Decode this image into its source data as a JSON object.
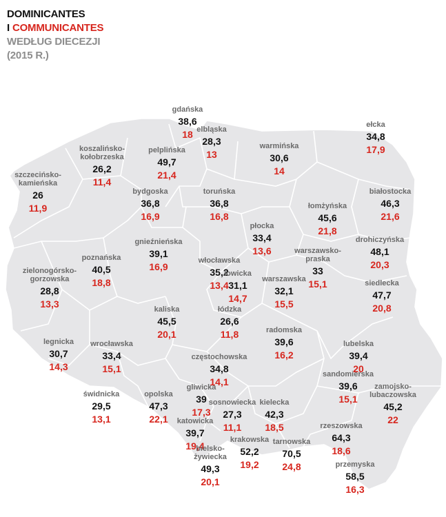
{
  "title": {
    "line1": "DOMINICANTES",
    "line2_prefix": "I ",
    "line2_red": "COMMUNICANTES",
    "line3": "WEDŁUG DIECEZJI",
    "line4": "(2015 R.)"
  },
  "colors": {
    "region": "#e6e6e8",
    "border": "#ffffff",
    "dominicantes": "#111111",
    "communicantes": "#d7261e",
    "label": "#6a6a6a"
  },
  "dioceses": [
    {
      "name": "gdańska",
      "dominicantes": "38,6",
      "communicantes": "18"
    },
    {
      "name": "elbląska",
      "dominicantes": "28,3",
      "communicantes": "13"
    },
    {
      "name": "warmińska",
      "dominicantes": "30,6",
      "communicantes": "14"
    },
    {
      "name": "ełcka",
      "dominicantes": "34,8",
      "communicantes": "17,9"
    },
    {
      "name": "koszalińsko-\nkołobrzeska",
      "dominicantes": "26,2",
      "communicantes": "11,4"
    },
    {
      "name": "pelplińska",
      "dominicantes": "49,7",
      "communicantes": "21,4"
    },
    {
      "name": "szczecińsko-\nkamieńska",
      "dominicantes": "26",
      "communicantes": "11,9"
    },
    {
      "name": "bydgoska",
      "dominicantes": "36,8",
      "communicantes": "16,9"
    },
    {
      "name": "toruńska",
      "dominicantes": "36,8",
      "communicantes": "16,8"
    },
    {
      "name": "białostocka",
      "dominicantes": "46,3",
      "communicantes": "21,6"
    },
    {
      "name": "łomżyńska",
      "dominicantes": "45,6",
      "communicantes": "21,8"
    },
    {
      "name": "płocka",
      "dominicantes": "33,4",
      "communicantes": "13,6"
    },
    {
      "name": "gnieźnieńska",
      "dominicantes": "39,1",
      "communicantes": "16,9"
    },
    {
      "name": "poznańska",
      "dominicantes": "40,5",
      "communicantes": "18,8"
    },
    {
      "name": "włocławska",
      "dominicantes": "35,2",
      "communicantes": "13,4"
    },
    {
      "name": "drohiczyńska",
      "dominicantes": "48,1",
      "communicantes": "20,3"
    },
    {
      "name": "warszawsko-\npraska",
      "dominicantes": "33",
      "communicantes": "15,1"
    },
    {
      "name": "zielonogórsko-\ngorzowska",
      "dominicantes": "28,8",
      "communicantes": "13,3"
    },
    {
      "name": "łowicka",
      "dominicantes": "31,1",
      "communicantes": "14,7"
    },
    {
      "name": "warszawska",
      "dominicantes": "32,1",
      "communicantes": "15,5"
    },
    {
      "name": "siedlecka",
      "dominicantes": "47,7",
      "communicantes": "20,8"
    },
    {
      "name": "kaliska",
      "dominicantes": "45,5",
      "communicantes": "20,1"
    },
    {
      "name": "łódzka",
      "dominicantes": "26,6",
      "communicantes": "11,8"
    },
    {
      "name": "radomska",
      "dominicantes": "39,6",
      "communicantes": "16,2"
    },
    {
      "name": "legnicka",
      "dominicantes": "30,7",
      "communicantes": "14,3"
    },
    {
      "name": "wrocławska",
      "dominicantes": "33,4",
      "communicantes": "15,1"
    },
    {
      "name": "częstochowska",
      "dominicantes": "34,8",
      "communicantes": "14,1"
    },
    {
      "name": "lubelska",
      "dominicantes": "39,4",
      "communicantes": "20"
    },
    {
      "name": "świdnicka",
      "dominicantes": "29,5",
      "communicantes": "13,1"
    },
    {
      "name": "opolska",
      "dominicantes": "47,3",
      "communicantes": "22,1"
    },
    {
      "name": "gliwicka",
      "dominicantes": "39",
      "communicantes": "17,3"
    },
    {
      "name": "sosnowiecka",
      "dominicantes": "27,3",
      "communicantes": "11,1"
    },
    {
      "name": "kielecka",
      "dominicantes": "42,3",
      "communicantes": "18,5"
    },
    {
      "name": "sandomierska",
      "dominicantes": "39,6",
      "communicantes": "15,1"
    },
    {
      "name": "zamojsko-\nlubaczowska",
      "dominicantes": "45,2",
      "communicantes": "22"
    },
    {
      "name": "katowicka",
      "dominicantes": "39,7",
      "communicantes": "19,4"
    },
    {
      "name": "rzeszowska",
      "dominicantes": "64,3",
      "communicantes": "18,6"
    },
    {
      "name": "krakowska",
      "dominicantes": "52,2",
      "communicantes": "19,2"
    },
    {
      "name": "tarnowska",
      "dominicantes": "70,5",
      "communicantes": "24,8"
    },
    {
      "name": "bielsko-\nżywiecka",
      "dominicantes": "49,3",
      "communicantes": "20,1"
    },
    {
      "name": "przemyska",
      "dominicantes": "58,5",
      "communicantes": "16,3"
    }
  ]
}
